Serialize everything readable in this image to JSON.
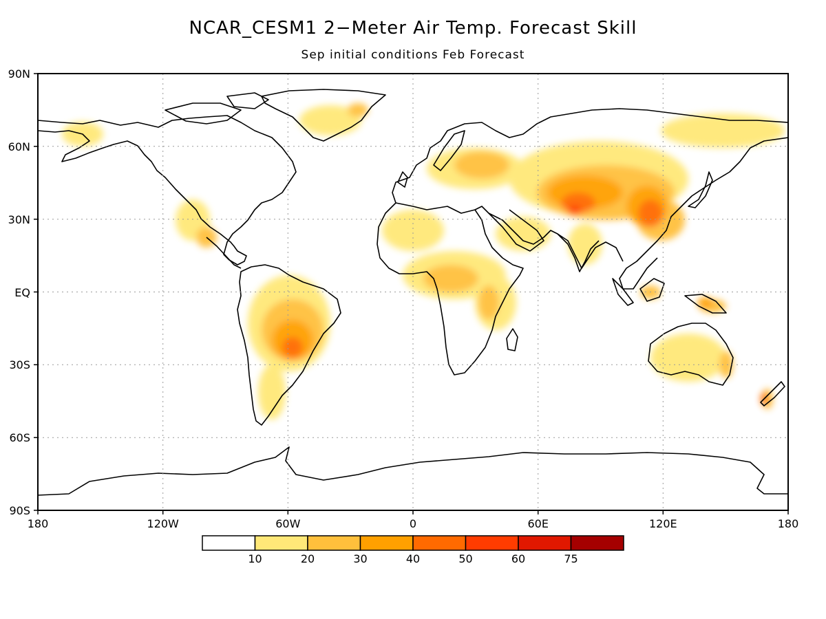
{
  "title": "NCAR_CESM1 2−Meter Air Temp. Forecast Skill",
  "subtitle": "Sep initial conditions  Feb Forecast",
  "lat_ticks": [
    "90N",
    "60N",
    "30N",
    "EQ",
    "30S",
    "60S",
    "90S"
  ],
  "lon_ticks": [
    "180",
    "120W",
    "60W",
    "0",
    "60E",
    "120E",
    "180"
  ],
  "colorbar": {
    "colors": [
      "#ffffff",
      "#ffe878",
      "#ffc03c",
      "#ffa000",
      "#ff6a00",
      "#ff3c00",
      "#e11800",
      "#a50000"
    ],
    "labels": [
      "10",
      "20",
      "30",
      "40",
      "50",
      "60",
      "75"
    ]
  }
}
